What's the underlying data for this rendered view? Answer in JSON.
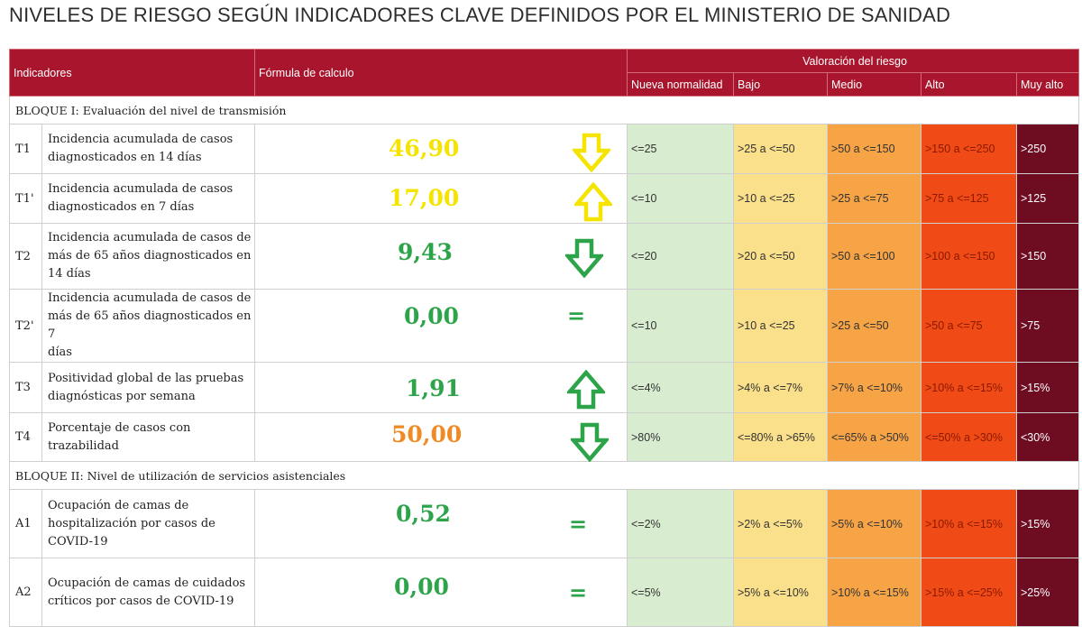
{
  "title": "NIVELES DE RIESGO SEGÚN INDICADORES CLAVE DEFINIDOS POR EL MINISTERIO DE SANIDAD",
  "header": {
    "indicadores": "Indicadores",
    "formula": "Fórmula de calculo",
    "valoracion": "Valoración del riesgo",
    "levels": [
      "Nueva normalidad",
      "Bajo",
      "Medio",
      "Alto",
      "Muy alto"
    ]
  },
  "blocks": [
    {
      "label": "BLOQUE I: Evaluación del nivel de transmisión"
    },
    {
      "label": "BLOQUE II: Nivel de utilización de servicios asistenciales"
    }
  ],
  "rows": [
    {
      "code": "T1",
      "lines": [
        "Incidencia acumulada de casos",
        "diagnosticados en 14 días"
      ],
      "value": "46,90",
      "trend": "down",
      "color": "#f5e400",
      "levels": [
        "<=25",
        ">25 a <=50",
        ">50 a <=150",
        ">150 a <=250",
        ">250"
      ]
    },
    {
      "code": "T1'",
      "lines": [
        "Incidencia acumulada de casos",
        "diagnosticados en 7 días"
      ],
      "value": "17,00",
      "trend": "up",
      "color": "#f5e400",
      "levels": [
        "<=10",
        ">10 a <=25",
        ">25 a <=75",
        ">75 a <=125",
        ">125"
      ]
    },
    {
      "code": "T2",
      "lines": [
        "Incidencia acumulada de casos de",
        "más de 65 años diagnosticados en",
        "14 días"
      ],
      "value": "9,43",
      "trend": "down",
      "color": "#2ea44a",
      "levels": [
        "<=20",
        ">20 a <=50",
        ">50 a <=100",
        ">100 a <=150",
        ">150"
      ]
    },
    {
      "code": "T2'",
      "lines": [
        "Incidencia acumulada de casos de",
        "más de 65 años diagnosticados en 7",
        "días"
      ],
      "value": "0,00",
      "trend": "equal",
      "color": "#2ea44a",
      "levels": [
        "<=10",
        ">10 a <=25",
        ">25 a <=50",
        ">50 a <=75",
        ">75"
      ]
    },
    {
      "code": "T3",
      "lines": [
        "Positividad global de las pruebas",
        "diagnósticas por semana"
      ],
      "value": "1,91",
      "trend": "up",
      "color": "#2ea44a",
      "levels": [
        "<=4%",
        ">4% a <=7%",
        ">7% a <=10%",
        ">10% a <=15%",
        ">15%"
      ]
    },
    {
      "code": "T4",
      "lines": [
        "Porcentaje de casos con",
        "trazabilidad"
      ],
      "value": "50,00",
      "trend": "down",
      "color": "#f08a24",
      "levels": [
        ">80%",
        "<=80% a >65%",
        "<=65% a >50%",
        "<=50% a >30%",
        "<30%"
      ]
    },
    {
      "code": "A1",
      "lines": [
        "Ocupación de camas de",
        "hospitalización por casos de",
        "COVID-19"
      ],
      "value": "0,52",
      "trend": "equal",
      "color": "#2ea44a",
      "levels": [
        "<=2%",
        ">2% a <=5%",
        ">5% a <=10%",
        ">10% a <=15%",
        ">15%"
      ]
    },
    {
      "code": "A2",
      "lines": [
        "Ocupación de camas de cuidados",
        "críticos por casos de COVID-19"
      ],
      "value": "0,00",
      "trend": "equal",
      "color": "#2ea44a",
      "levels": [
        "<=5%",
        ">5% a <=10%",
        ">10% a <=15%",
        ">15% a <=25%",
        ">25%"
      ]
    }
  ],
  "arrow_colors": {
    "yellow": "#f5e400",
    "green": "#2ea44a"
  }
}
